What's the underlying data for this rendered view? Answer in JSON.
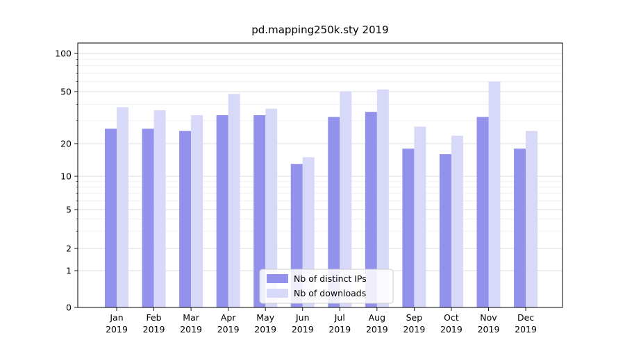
{
  "chart_data": {
    "type": "bar",
    "title": "pd.mapping250k.sty 2019",
    "x_tick_months": [
      "Jan",
      "Feb",
      "Mar",
      "Apr",
      "May",
      "Jun",
      "Jul",
      "Aug",
      "Sep",
      "Oct",
      "Nov",
      "Dec"
    ],
    "x_tick_year": "2019",
    "series": [
      {
        "name": "Nb of distinct IPs",
        "color": "#9292ec",
        "values": [
          26,
          26,
          25,
          33,
          33,
          13,
          32,
          35,
          18,
          16,
          32,
          18
        ]
      },
      {
        "name": "Nb of downloads",
        "color": "#d8d8f8",
        "values": [
          38,
          36,
          33,
          48,
          37,
          15,
          50,
          52,
          27,
          23,
          60,
          25
        ]
      }
    ],
    "y_scale": "symlog",
    "y_ticks": [
      0,
      1,
      2,
      5,
      10,
      20,
      50,
      100
    ],
    "y_minor_ticks": [
      3,
      4,
      6,
      7,
      8,
      9,
      30,
      40,
      60,
      70,
      80,
      90
    ],
    "ylim": [
      0,
      140
    ],
    "grid": true,
    "legend_position": "lower center",
    "colors": {
      "axis": "#000000",
      "major_grid": "#dddddd",
      "minor_grid": "#eeeeee",
      "legend_border": "#cccccc",
      "background": "#ffffff"
    }
  }
}
